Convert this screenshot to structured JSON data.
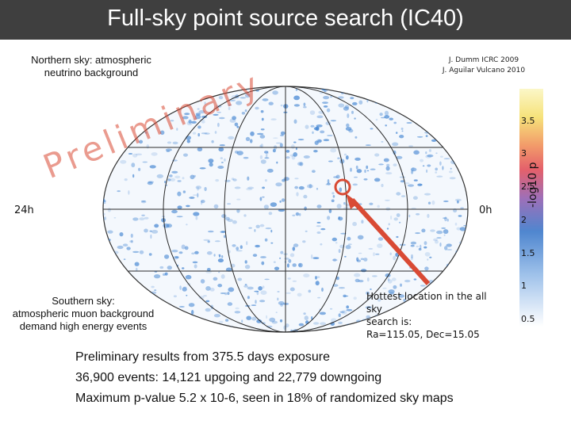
{
  "title": "Full-sky point source search (IC40)",
  "north_note": [
    "Northern sky: atmospheric",
    "neutrino background"
  ],
  "credits": [
    "J. Dumm ICRC 2009",
    "J. Aguilar Vulcano 2010"
  ],
  "south_note": [
    "Southern sky:",
    "atmospheric muon background",
    "demand high energy events"
  ],
  "watermark": "Preliminary",
  "axis_left": "24h",
  "axis_right": "0h",
  "hotspot_label": [
    "Hottest location in the all sky",
    "search is:",
    "Ra=115.05, Dec=15.05"
  ],
  "colorbar": {
    "label": "-log10 p",
    "ticks": [
      "3.5",
      "3",
      "2.5",
      "2",
      "1.5",
      "1",
      "0.5"
    ]
  },
  "summary": [
    "Preliminary results from 375.5 days exposure",
    "36,900 events: 14,121 upgoing and 22,779 downgoing",
    "Maximum p-value 5.2 x 10-6, seen in 18% of randomized sky maps"
  ],
  "colors": {
    "title_bg": "#3f3f3f",
    "arrow": "#d94a34",
    "speckle": "#3a7fd0"
  }
}
